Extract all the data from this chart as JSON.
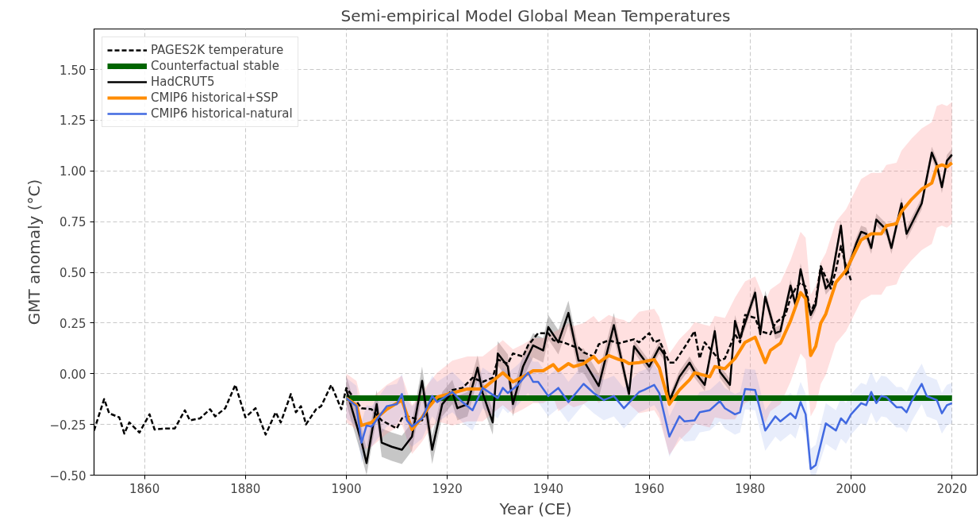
{
  "chart_data": {
    "type": "line",
    "title": "Semi-empirical Model Global Mean Temperatures",
    "xlabel": "Year (CE)",
    "ylabel": "GMT anomaly (°C)",
    "xlim": [
      1850,
      2025
    ],
    "ylim": [
      -0.5,
      1.7
    ],
    "xticks": [
      1860,
      1880,
      1900,
      1920,
      1940,
      1960,
      1980,
      2000,
      2020
    ],
    "yticks": [
      {
        "value": -0.5,
        "label": "−0.50"
      },
      {
        "value": -0.25,
        "label": "−0.25"
      },
      {
        "value": 0,
        "label": "0.00"
      },
      {
        "value": 0.25,
        "label": "0.25"
      },
      {
        "value": 0.5,
        "label": "0.50"
      },
      {
        "value": 0.75,
        "label": "0.75"
      },
      {
        "value": 1.0,
        "label": "1.00"
      },
      {
        "value": 1.25,
        "label": "1.25"
      },
      {
        "value": 1.5,
        "label": "1.50"
      }
    ],
    "grid": true,
    "legend": "top left",
    "marker": "none",
    "series": [
      {
        "name": "PAGES2K temperature",
        "color": "#000000",
        "line_style": "dashed",
        "x": [
          1850,
          1852,
          1853,
          1855,
          1856,
          1857,
          1859,
          1861,
          1862,
          1864,
          1866,
          1868,
          1869,
          1871,
          1873,
          1874,
          1876,
          1878,
          1880,
          1882,
          1884,
          1886,
          1887,
          1889,
          1890,
          1891,
          1892,
          1894,
          1895,
          1897,
          1899,
          1900,
          1903,
          1905,
          1907,
          1910,
          1911,
          1912,
          1915,
          1917,
          1919,
          1921,
          1923,
          1925,
          1927,
          1929,
          1930,
          1932,
          1933,
          1935,
          1936,
          1938,
          1940,
          1941,
          1943,
          1945,
          1946,
          1947,
          1949,
          1950,
          1952,
          1954,
          1957,
          1958,
          1960,
          1961,
          1962,
          1964,
          1965,
          1967,
          1969,
          1970,
          1971,
          1973,
          1974,
          1975,
          1977,
          1978,
          1979,
          1981,
          1982,
          1984,
          1985,
          1987,
          1988,
          1989,
          1990,
          1991,
          1992,
          1993,
          1994,
          1996,
          1997,
          1998,
          1999,
          2000
        ],
        "values": [
          -0.28,
          -0.125,
          -0.195,
          -0.215,
          -0.295,
          -0.24,
          -0.29,
          -0.2,
          -0.275,
          -0.27,
          -0.27,
          -0.18,
          -0.23,
          -0.22,
          -0.175,
          -0.21,
          -0.17,
          -0.055,
          -0.215,
          -0.17,
          -0.3,
          -0.19,
          -0.24,
          -0.1,
          -0.19,
          -0.16,
          -0.25,
          -0.175,
          -0.16,
          -0.055,
          -0.175,
          -0.07,
          -0.17,
          -0.175,
          -0.23,
          -0.27,
          -0.22,
          -0.21,
          -0.23,
          -0.13,
          -0.13,
          -0.08,
          -0.07,
          -0.02,
          -0.04,
          -0.02,
          0.07,
          0.05,
          0.1,
          0.085,
          0.14,
          0.2,
          0.2,
          0.165,
          0.155,
          0.135,
          0.13,
          0.105,
          0.085,
          0.145,
          0.165,
          0.15,
          0.17,
          0.155,
          0.2,
          0.155,
          0.165,
          0.055,
          0.055,
          0.13,
          0.21,
          0.075,
          0.155,
          0.095,
          0.065,
          0.075,
          0.195,
          0.155,
          0.29,
          0.275,
          0.21,
          0.195,
          0.25,
          0.29,
          0.375,
          0.42,
          0.45,
          0.43,
          0.3,
          0.36,
          0.53,
          0.42,
          0.51,
          0.63,
          0.53,
          0.46
        ]
      },
      {
        "name": "Counterfactual stable",
        "color": "#006400",
        "x": [
          1900,
          2020
        ],
        "values": [
          -0.12,
          -0.12
        ]
      },
      {
        "name": "HadCRUT5",
        "color": "#000000",
        "x": [
          1900,
          1903,
          1904,
          1906,
          1907,
          1909,
          1911,
          1913,
          1915,
          1917,
          1919,
          1921,
          1922,
          1924,
          1926,
          1927,
          1929,
          1930,
          1932,
          1933,
          1935,
          1937,
          1939,
          1940,
          1942,
          1944,
          1946,
          1947,
          1950,
          1953,
          1956,
          1957,
          1960,
          1962,
          1963,
          1964,
          1966,
          1968,
          1969,
          1971,
          1973,
          1974,
          1976,
          1977,
          1978,
          1981,
          1982,
          1983,
          1985,
          1986,
          1988,
          1989,
          1990,
          1992,
          1993,
          1994,
          1995,
          1996,
          1998,
          1999,
          2001,
          2002,
          2003,
          2004,
          2005,
          2007,
          2008,
          2010,
          2011,
          2014,
          2016,
          2017,
          2018,
          2019,
          2020
        ],
        "values": [
          -0.08,
          -0.335,
          -0.44,
          -0.15,
          -0.34,
          -0.36,
          -0.375,
          -0.31,
          -0.035,
          -0.375,
          -0.15,
          -0.09,
          -0.17,
          -0.15,
          0.03,
          -0.095,
          -0.24,
          0.1,
          0.035,
          -0.15,
          0.035,
          0.14,
          0.115,
          0.23,
          0.155,
          0.3,
          0.065,
          0.065,
          -0.06,
          0.24,
          -0.1,
          0.135,
          0.035,
          0.13,
          0.095,
          -0.135,
          -0.015,
          0.055,
          0.01,
          -0.055,
          0.21,
          0.01,
          -0.055,
          0.26,
          0.175,
          0.4,
          0.195,
          0.38,
          0.2,
          0.21,
          0.435,
          0.34,
          0.515,
          0.29,
          0.34,
          0.52,
          0.42,
          0.45,
          0.73,
          0.49,
          0.64,
          0.7,
          0.69,
          0.62,
          0.76,
          0.71,
          0.62,
          0.84,
          0.69,
          0.84,
          1.09,
          1.03,
          0.92,
          1.05,
          1.08
        ],
        "lower": [
          -0.15,
          -0.405,
          -0.5,
          -0.22,
          -0.41,
          -0.43,
          -0.445,
          -0.38,
          -0.105,
          -0.445,
          -0.21,
          -0.15,
          -0.23,
          -0.21,
          -0.03,
          -0.155,
          -0.3,
          0.04,
          -0.025,
          -0.21,
          -0.025,
          0.08,
          0.055,
          0.17,
          0.095,
          0.24,
          0.005,
          0.005,
          -0.12,
          0.18,
          -0.13,
          0.105,
          0.005,
          0.1,
          0.065,
          -0.165,
          -0.045,
          0.025,
          -0.02,
          -0.085,
          0.18,
          -0.02,
          -0.085,
          0.23,
          0.145,
          0.37,
          0.165,
          0.35,
          0.17,
          0.18,
          0.405,
          0.31,
          0.485,
          0.26,
          0.31,
          0.49,
          0.39,
          0.42,
          0.7,
          0.46,
          0.61,
          0.67,
          0.66,
          0.59,
          0.73,
          0.68,
          0.59,
          0.81,
          0.66,
          0.81,
          1.06,
          1.0,
          0.89,
          1.02,
          1.05
        ],
        "upper": [
          -0.01,
          -0.265,
          -0.37,
          -0.08,
          -0.27,
          -0.29,
          -0.305,
          -0.24,
          0.035,
          -0.305,
          -0.09,
          -0.03,
          -0.11,
          -0.09,
          0.09,
          -0.035,
          -0.18,
          0.16,
          0.095,
          -0.09,
          0.095,
          0.2,
          0.175,
          0.29,
          0.215,
          0.36,
          0.125,
          0.125,
          0.0,
          0.3,
          -0.07,
          0.165,
          0.065,
          0.16,
          0.125,
          -0.105,
          0.015,
          0.085,
          0.04,
          -0.025,
          0.24,
          0.04,
          -0.025,
          0.29,
          0.205,
          0.43,
          0.225,
          0.41,
          0.23,
          0.24,
          0.465,
          0.37,
          0.545,
          0.32,
          0.37,
          0.55,
          0.45,
          0.48,
          0.76,
          0.52,
          0.67,
          0.73,
          0.72,
          0.65,
          0.79,
          0.74,
          0.65,
          0.87,
          0.72,
          0.87,
          1.12,
          1.06,
          0.95,
          1.08,
          1.11
        ]
      },
      {
        "name": "CMIP6 historical+SSP",
        "color": "#ff8c00",
        "x": [
          1900,
          1902,
          1903,
          1905,
          1908,
          1911,
          1913,
          1915,
          1916,
          1918,
          1921,
          1924,
          1927,
          1928,
          1931,
          1933,
          1935,
          1937,
          1939,
          1941,
          1942,
          1944,
          1945,
          1947,
          1949,
          1950,
          1952,
          1954,
          1955,
          1956,
          1958,
          1961,
          1962,
          1964,
          1966,
          1968,
          1969,
          1972,
          1973,
          1975,
          1977,
          1979,
          1981,
          1983,
          1984,
          1986,
          1988,
          1990,
          1991,
          1992,
          1993,
          1994,
          1995,
          1997,
          1999,
          2001,
          2002,
          2004,
          2006,
          2007,
          2009,
          2010,
          2012,
          2014,
          2016,
          2017,
          2018,
          2019,
          2020
        ],
        "values": [
          -0.12,
          -0.155,
          -0.255,
          -0.24,
          -0.175,
          -0.13,
          -0.275,
          -0.215,
          -0.175,
          -0.115,
          -0.095,
          -0.075,
          -0.075,
          -0.055,
          0.005,
          -0.04,
          -0.015,
          0.015,
          0.015,
          0.045,
          0.015,
          0.05,
          0.035,
          0.05,
          0.085,
          0.055,
          0.09,
          0.07,
          0.065,
          0.05,
          0.055,
          0.07,
          0.03,
          -0.15,
          -0.08,
          -0.03,
          0.005,
          -0.015,
          0.035,
          0.025,
          0.075,
          0.155,
          0.18,
          0.055,
          0.115,
          0.15,
          0.26,
          0.4,
          0.37,
          0.09,
          0.135,
          0.25,
          0.295,
          0.45,
          0.51,
          0.61,
          0.66,
          0.69,
          0.69,
          0.73,
          0.74,
          0.8,
          0.86,
          0.91,
          0.94,
          1.02,
          1.03,
          1.02,
          1.04
        ],
        "lower": [
          -0.24,
          -0.275,
          -0.375,
          -0.36,
          -0.295,
          -0.25,
          -0.395,
          -0.335,
          -0.295,
          -0.235,
          -0.255,
          -0.235,
          -0.235,
          -0.215,
          -0.155,
          -0.2,
          -0.175,
          -0.145,
          -0.145,
          -0.115,
          -0.185,
          -0.15,
          -0.165,
          -0.15,
          -0.115,
          -0.145,
          -0.11,
          -0.13,
          -0.135,
          -0.15,
          -0.195,
          -0.18,
          -0.22,
          -0.4,
          -0.33,
          -0.28,
          -0.245,
          -0.265,
          -0.215,
          -0.225,
          -0.225,
          -0.145,
          -0.12,
          -0.245,
          -0.185,
          -0.15,
          -0.04,
          0.1,
          0.07,
          -0.21,
          -0.165,
          -0.05,
          -0.005,
          0.15,
          0.21,
          0.31,
          0.36,
          0.39,
          0.39,
          0.43,
          0.44,
          0.5,
          0.56,
          0.61,
          0.64,
          0.72,
          0.73,
          0.72,
          0.74
        ],
        "upper": [
          0.0,
          -0.035,
          -0.135,
          -0.12,
          -0.055,
          -0.01,
          -0.155,
          -0.095,
          -0.055,
          0.005,
          0.065,
          0.085,
          0.085,
          0.105,
          0.165,
          0.12,
          0.145,
          0.175,
          0.175,
          0.205,
          0.215,
          0.25,
          0.235,
          0.25,
          0.285,
          0.255,
          0.29,
          0.27,
          0.265,
          0.25,
          0.305,
          0.32,
          0.28,
          0.1,
          0.17,
          0.22,
          0.255,
          0.235,
          0.285,
          0.275,
          0.375,
          0.455,
          0.48,
          0.355,
          0.415,
          0.45,
          0.56,
          0.7,
          0.67,
          0.39,
          0.435,
          0.55,
          0.595,
          0.75,
          0.81,
          0.91,
          0.96,
          0.99,
          0.99,
          1.03,
          1.04,
          1.1,
          1.16,
          1.21,
          1.24,
          1.32,
          1.33,
          1.32,
          1.34
        ]
      },
      {
        "name": "CMIP6 historical-natural",
        "color": "#4169e1",
        "x": [
          1900,
          1902,
          1903,
          1904,
          1905,
          1908,
          1910,
          1911,
          1912,
          1913,
          1915,
          1917,
          1918,
          1921,
          1923,
          1925,
          1927,
          1930,
          1931,
          1932,
          1934,
          1936,
          1937,
          1938,
          1940,
          1942,
          1944,
          1947,
          1949,
          1951,
          1953,
          1955,
          1958,
          1959,
          1961,
          1962,
          1964,
          1966,
          1967,
          1969,
          1970,
          1972,
          1974,
          1975,
          1977,
          1978,
          1979,
          1981,
          1983,
          1985,
          1986,
          1988,
          1989,
          1990,
          1991,
          1992,
          1993,
          1995,
          1997,
          1998,
          1999,
          2000,
          2002,
          2003,
          2004,
          2005,
          2006,
          2007,
          2009,
          2010,
          2011,
          2012,
          2014,
          2015,
          2017,
          2018,
          2019,
          2020
        ],
        "values": [
          -0.12,
          -0.16,
          -0.34,
          -0.255,
          -0.26,
          -0.16,
          -0.15,
          -0.1,
          -0.23,
          -0.26,
          -0.22,
          -0.11,
          -0.14,
          -0.09,
          -0.14,
          -0.18,
          -0.07,
          -0.12,
          -0.07,
          -0.095,
          -0.055,
          0.005,
          -0.04,
          -0.04,
          -0.11,
          -0.07,
          -0.14,
          -0.05,
          -0.095,
          -0.13,
          -0.11,
          -0.17,
          -0.09,
          -0.08,
          -0.055,
          -0.095,
          -0.31,
          -0.21,
          -0.235,
          -0.23,
          -0.19,
          -0.18,
          -0.135,
          -0.17,
          -0.2,
          -0.19,
          -0.075,
          -0.08,
          -0.28,
          -0.21,
          -0.235,
          -0.195,
          -0.22,
          -0.14,
          -0.2,
          -0.47,
          -0.45,
          -0.245,
          -0.28,
          -0.22,
          -0.245,
          -0.2,
          -0.145,
          -0.155,
          -0.09,
          -0.145,
          -0.11,
          -0.115,
          -0.165,
          -0.165,
          -0.19,
          -0.135,
          -0.05,
          -0.11,
          -0.13,
          -0.195,
          -0.155,
          -0.145
        ],
        "lower": [
          -0.22,
          -0.26,
          -0.44,
          -0.355,
          -0.36,
          -0.26,
          -0.25,
          -0.2,
          -0.33,
          -0.36,
          -0.32,
          -0.21,
          -0.24,
          -0.19,
          -0.24,
          -0.28,
          -0.17,
          -0.22,
          -0.17,
          -0.195,
          -0.155,
          -0.095,
          -0.14,
          -0.14,
          -0.21,
          -0.17,
          -0.24,
          -0.15,
          -0.195,
          -0.23,
          -0.21,
          -0.27,
          -0.19,
          -0.18,
          -0.155,
          -0.195,
          -0.41,
          -0.31,
          -0.335,
          -0.33,
          -0.29,
          -0.28,
          -0.235,
          -0.27,
          -0.3,
          -0.29,
          -0.175,
          -0.18,
          -0.38,
          -0.31,
          -0.335,
          -0.295,
          -0.32,
          -0.24,
          -0.3,
          -0.5,
          -0.5,
          -0.345,
          -0.38,
          -0.32,
          -0.345,
          -0.3,
          -0.245,
          -0.255,
          -0.19,
          -0.245,
          -0.21,
          -0.215,
          -0.265,
          -0.265,
          -0.29,
          -0.235,
          -0.15,
          -0.21,
          -0.23,
          -0.295,
          -0.255,
          -0.245
        ],
        "upper": [
          -0.02,
          -0.06,
          -0.24,
          -0.155,
          -0.16,
          -0.06,
          -0.05,
          0.0,
          -0.13,
          -0.16,
          -0.12,
          -0.01,
          -0.04,
          0.01,
          -0.04,
          -0.08,
          0.03,
          -0.02,
          0.03,
          0.005,
          0.045,
          0.105,
          0.06,
          0.06,
          -0.01,
          0.03,
          -0.04,
          0.05,
          0.005,
          -0.03,
          -0.01,
          -0.07,
          0.01,
          0.02,
          0.045,
          0.005,
          -0.21,
          -0.11,
          -0.135,
          -0.13,
          -0.09,
          -0.08,
          -0.035,
          -0.07,
          -0.1,
          -0.09,
          0.025,
          0.02,
          -0.18,
          -0.11,
          -0.135,
          -0.095,
          -0.12,
          -0.04,
          -0.1,
          -0.37,
          -0.35,
          -0.145,
          -0.18,
          -0.12,
          -0.145,
          -0.1,
          -0.045,
          -0.055,
          0.01,
          -0.045,
          -0.01,
          -0.015,
          -0.065,
          -0.065,
          -0.09,
          -0.035,
          0.05,
          -0.01,
          -0.03,
          -0.095,
          -0.055,
          -0.045
        ]
      }
    ]
  }
}
